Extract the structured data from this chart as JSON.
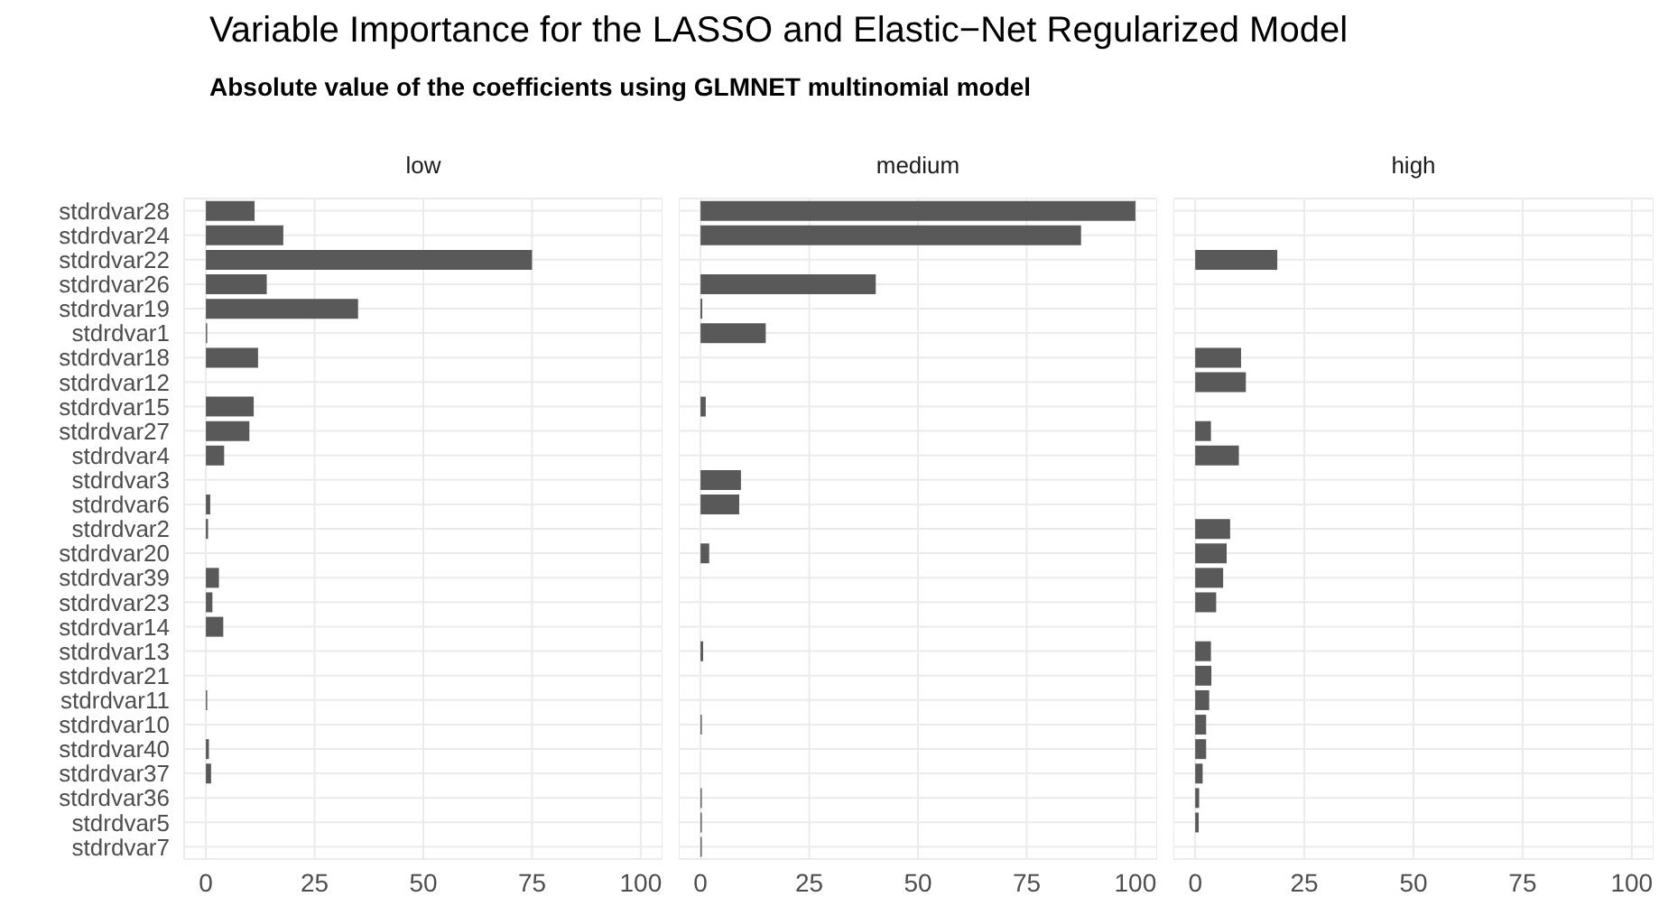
{
  "chart_data": [
    {
      "type": "bar",
      "orientation": "horizontal",
      "title": "low",
      "annotations": [
        "Variable Importance for the LASSO and Elastic−Net Regularized Model",
        "Absolute value of the coefficients using GLMNET multinomial model"
      ],
      "categories": [
        "stdrdvar28",
        "stdrdvar24",
        "stdrdvar22",
        "stdrdvar26",
        "stdrdvar19",
        "stdrdvar1",
        "stdrdvar18",
        "stdrdvar12",
        "stdrdvar15",
        "stdrdvar27",
        "stdrdvar4",
        "stdrdvar3",
        "stdrdvar6",
        "stdrdvar2",
        "stdrdvar20",
        "stdrdvar39",
        "stdrdvar23",
        "stdrdvar14",
        "stdrdvar13",
        "stdrdvar21",
        "stdrdvar11",
        "stdrdvar10",
        "stdrdvar40",
        "stdrdvar37",
        "stdrdvar36",
        "stdrdvar5",
        "stdrdvar7"
      ],
      "values": [
        11.2,
        17.8,
        75,
        14,
        35,
        0.3,
        12,
        0,
        11,
        10,
        4.2,
        0,
        1,
        0.5,
        0,
        3,
        1.5,
        4,
        0,
        0,
        0.3,
        0,
        0.7,
        1.2,
        0,
        0,
        0
      ],
      "color": "#595959",
      "xlim": [
        -5,
        105
      ],
      "xticks": [
        0,
        25,
        50,
        75,
        100
      ],
      "grid": true
    },
    {
      "type": "bar",
      "orientation": "horizontal",
      "title": "medium",
      "values": [
        100,
        87.5,
        0,
        40.3,
        0.4,
        15,
        0,
        0,
        1.2,
        0,
        0,
        9.3,
        8.9,
        0,
        2,
        0,
        0,
        0,
        0.6,
        0,
        0,
        0.3,
        0,
        0,
        0.3,
        0.3,
        0.3
      ],
      "color": "#595959",
      "xlim": [
        -5,
        105
      ],
      "xticks": [
        0,
        25,
        50,
        75,
        100
      ],
      "grid": true,
      "tick_labels": "x"
    },
    {
      "type": "bar",
      "orientation": "horizontal",
      "title": "high",
      "values": [
        0,
        0,
        18.8,
        0,
        0,
        0,
        10.5,
        11.6,
        0,
        3.6,
        10,
        0,
        0,
        8,
        7.2,
        6.4,
        4.8,
        0,
        3.6,
        3.7,
        3.2,
        2.5,
        2.5,
        1.7,
        0.9,
        0.8,
        0
      ],
      "color": "#595959",
      "xlim": [
        -5,
        105
      ],
      "xticks": [
        0,
        25,
        50,
        75,
        100
      ],
      "grid": true,
      "tick_labels": "x"
    }
  ]
}
